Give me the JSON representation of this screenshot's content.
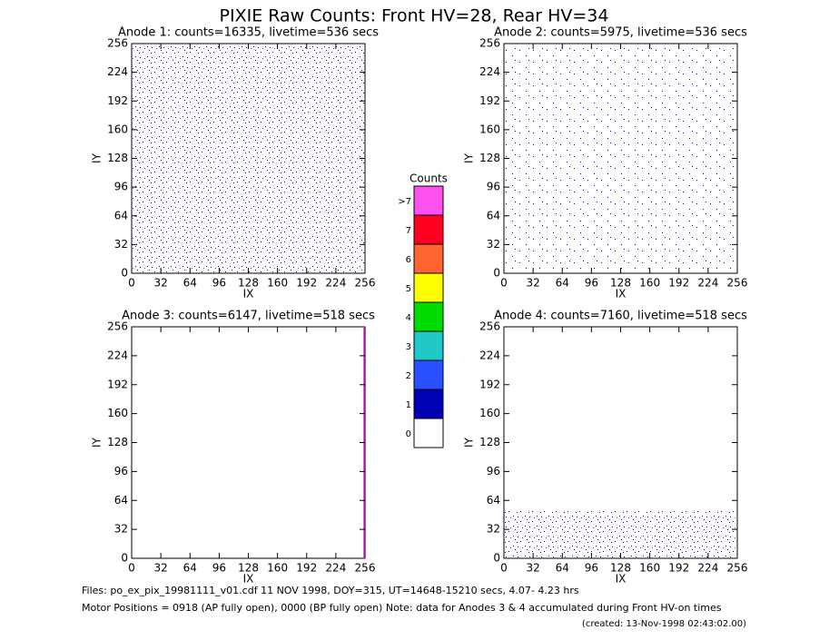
{
  "title": "PIXIE Raw Counts:  Front HV=28, Rear HV=34",
  "chart_data": [
    {
      "type": "image",
      "title": "Anode 1: counts=16335, livetime=536 secs",
      "xlabel": "IX",
      "ylabel": "IY",
      "xlim": [
        0,
        256
      ],
      "ylim": [
        0,
        256
      ],
      "xticks": [
        0,
        32,
        64,
        96,
        128,
        160,
        192,
        224,
        256
      ],
      "yticks": [
        0,
        32,
        64,
        96,
        128,
        160,
        192,
        224,
        256
      ]
    },
    {
      "type": "image",
      "title": "Anode 2: counts=5975, livetime=536 secs",
      "xlabel": "IX",
      "ylabel": "IY",
      "xlim": [
        0,
        256
      ],
      "ylim": [
        0,
        256
      ],
      "xticks": [
        0,
        32,
        64,
        96,
        128,
        160,
        192,
        224,
        256
      ],
      "yticks": [
        0,
        32,
        64,
        96,
        128,
        160,
        192,
        224,
        256
      ]
    },
    {
      "type": "image",
      "title": "Anode 3: counts=6147, livetime=518 secs",
      "xlabel": "IX",
      "ylabel": "IY",
      "xlim": [
        0,
        256
      ],
      "ylim": [
        0,
        256
      ],
      "xticks": [
        0,
        32,
        64,
        96,
        128,
        160,
        192,
        224,
        256
      ],
      "yticks": [
        0,
        32,
        64,
        96,
        128,
        160,
        192,
        224,
        256
      ]
    },
    {
      "type": "image",
      "title": "Anode 4: counts=7160, livetime=518 secs",
      "xlabel": "IX",
      "ylabel": "IY",
      "xlim": [
        0,
        256
      ],
      "ylim": [
        0,
        256
      ],
      "xticks": [
        0,
        32,
        64,
        96,
        128,
        160,
        192,
        224,
        256
      ],
      "yticks": [
        0,
        32,
        64,
        96,
        128,
        160,
        192,
        224,
        256
      ]
    }
  ],
  "colorbar": {
    "title": "Counts",
    "levels": [
      {
        "label": "0",
        "color": "#ffffff"
      },
      {
        "label": "1",
        "color": "#0000b4"
      },
      {
        "label": "2",
        "color": "#2850ff"
      },
      {
        "label": "3",
        "color": "#20c8c8"
      },
      {
        "label": "4",
        "color": "#00dc00"
      },
      {
        "label": "5",
        "color": "#ffff00"
      },
      {
        "label": "6",
        "color": "#ff6430"
      },
      {
        "label": "7",
        "color": "#ff0020"
      },
      {
        "label": ">7",
        "color": "#ff50f0"
      }
    ]
  },
  "footer": {
    "files": "Files: po_ex_pix_19981111_v01.cdf    11 NOV 1998, DOY=315, UT=14648-15210 secs,  4.07- 4.23 hrs",
    "motor": "Motor Positions = 0918 (AP fully open), 0000 (BP fully open)    Note: data for Anodes 3 & 4 accumulated during Front HV-on times",
    "created": "(created: 13-Nov-1998 02:43:02.00)"
  }
}
